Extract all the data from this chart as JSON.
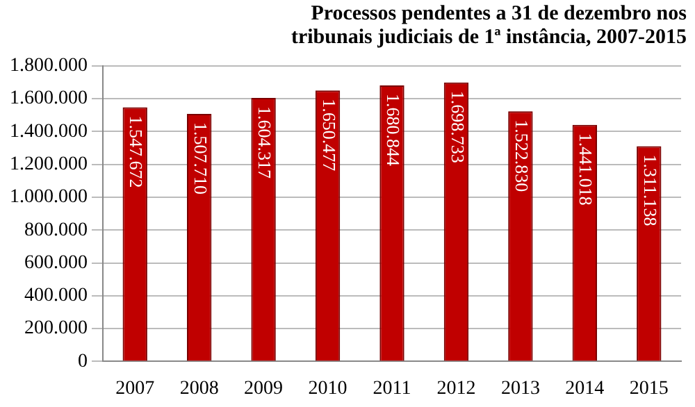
{
  "chart_data": {
    "type": "bar",
    "title": "Processos pendentes a 31 de dezembro nos tribunais judiciais de 1ª instância, 2007-2015",
    "categories": [
      "2007",
      "2008",
      "2009",
      "2010",
      "2011",
      "2012",
      "2013",
      "2014",
      "2015"
    ],
    "values": [
      1547672,
      1507710,
      1604317,
      1650477,
      1680844,
      1698733,
      1522830,
      1441018,
      1311138
    ],
    "value_labels": [
      "1.547.672",
      "1.507.710",
      "1.604.317",
      "1.650.477",
      "1.680.844",
      "1.698.733",
      "1.522.830",
      "1.441.018",
      "1.311.138"
    ],
    "color": "#c00000",
    "ylim": [
      0,
      1800000
    ],
    "yticks": [
      {
        "value": 0,
        "label": "0"
      },
      {
        "value": 200000,
        "label": "200.000"
      },
      {
        "value": 400000,
        "label": "400.000"
      },
      {
        "value": 600000,
        "label": "600.000"
      },
      {
        "value": 800000,
        "label": "800.000"
      },
      {
        "value": 1000000,
        "label": "1.000.000"
      },
      {
        "value": 1200000,
        "label": "1.200.000"
      },
      {
        "value": 1400000,
        "label": "1.400.000"
      },
      {
        "value": 1600000,
        "label": "1.600.000"
      },
      {
        "value": 1800000,
        "label": "1.800.000"
      }
    ],
    "grid": "y",
    "legend": false
  }
}
